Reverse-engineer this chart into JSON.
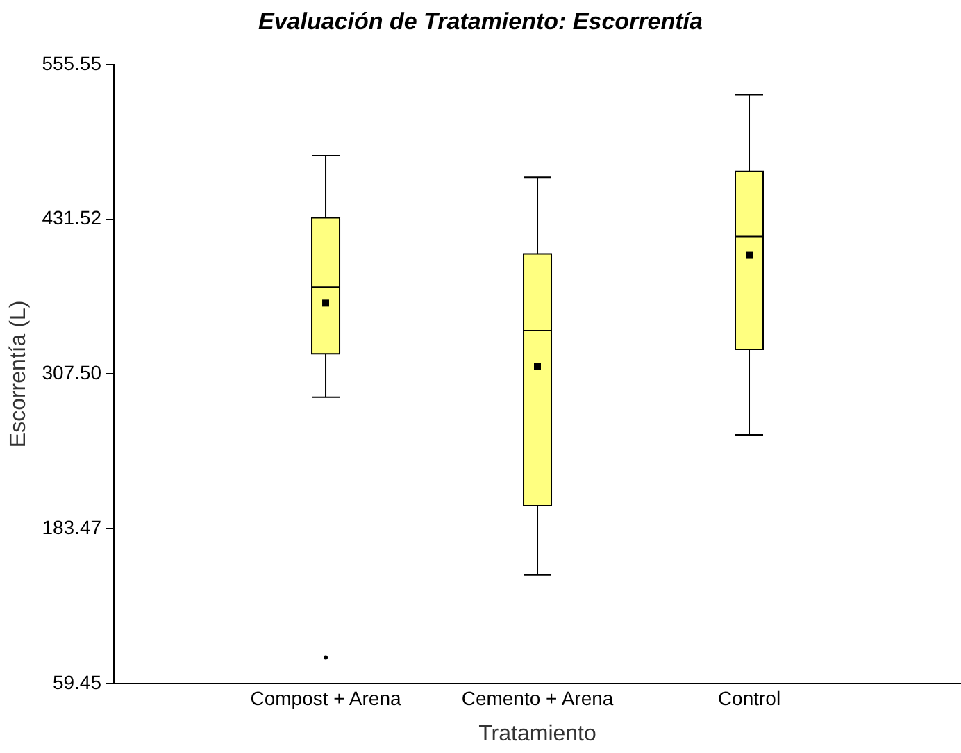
{
  "chart_data": {
    "type": "box",
    "title": "Evaluación de Tratamiento: Escorrentía",
    "xlabel": "Tratamiento",
    "ylabel": "Escorrentía (L)",
    "categories": [
      "Compost + Arena",
      "Cemento + Arena",
      "Control"
    ],
    "color": "#ffff80",
    "boxes": [
      {
        "low": 289.0,
        "q1": 323.7,
        "median": 377.1,
        "q3": 432.7,
        "high": 482.5,
        "mean": 364.3,
        "outliers": [
          80.3
        ]
      },
      {
        "low": 146.4,
        "q1": 202.0,
        "median": 342.3,
        "q3": 403.7,
        "high": 465.1,
        "mean": 313.3
      },
      {
        "low": 258.8,
        "q1": 327.2,
        "median": 417.6,
        "q3": 469.8,
        "high": 531.2,
        "mean": 402.6
      }
    ],
    "ylim": [
      59.45,
      555.55
    ],
    "yticks": [
      59.45,
      183.47,
      {
        "value": 307.5,
        "label": "307.50"
      },
      431.52,
      555.55
    ],
    "grid": false,
    "legend": false
  }
}
